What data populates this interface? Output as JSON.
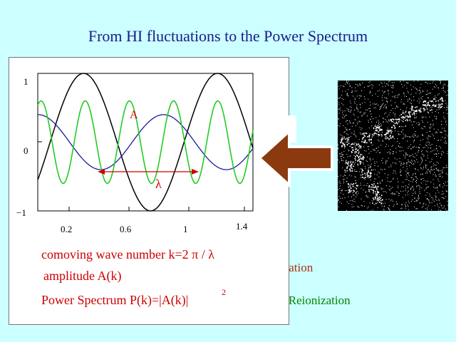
{
  "title": "From HI fluctuations to the Power Spectrum",
  "background_fragments": {
    "line1": "mation",
    "line2": "g Reionization"
  },
  "plot": {
    "y_ticks": [
      "1",
      "0",
      "−1"
    ],
    "x_ticks": [
      "0.2",
      "0.6",
      "1",
      "1.4"
    ],
    "amplitude_label": "A",
    "wavelength_label": "λ"
  },
  "labels": {
    "wave_number": "comoving wave number k=2 π / λ",
    "amplitude": "amplitude A(k)",
    "power_spectrum": "Power Spectrum P(k)=|A(k)|",
    "power_superscript": "2"
  },
  "colors": {
    "background": "#ccffff",
    "title": "#1a1a8c",
    "labels": "#cc0000",
    "arrow": "#8b3a0f",
    "wave_black": "#000000",
    "wave_blue": "#1a1aa0",
    "wave_green": "#22cc22"
  },
  "icons": {
    "arrow": "left-arrow-icon",
    "map": "hi-density-field-image"
  }
}
